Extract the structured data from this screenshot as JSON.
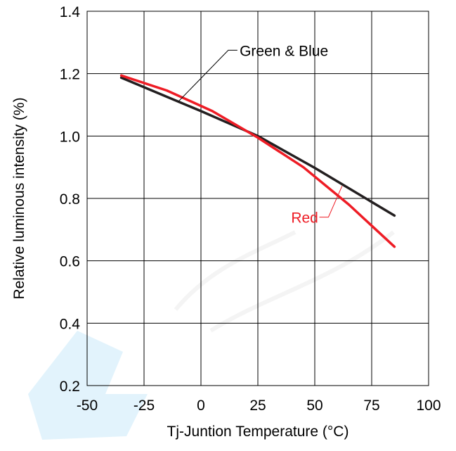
{
  "chart_data": {
    "type": "line",
    "xlabel": "Tj-Juntion Temperature (°C)",
    "ylabel": "Relative luminous intensity (%)",
    "xlim": [
      -50,
      100
    ],
    "ylim": [
      0.2,
      1.4
    ],
    "x_ticks": [
      -50,
      -25,
      0,
      25,
      50,
      75,
      100
    ],
    "y_ticks": [
      0.2,
      0.4,
      0.6,
      0.8,
      1.0,
      1.2,
      1.4
    ],
    "x_tick_labels": [
      "-50",
      "-25",
      "0",
      "25",
      "50",
      "75",
      "100"
    ],
    "y_tick_labels": [
      "0.2",
      "0.4",
      "0.6",
      "0.8",
      "1.0",
      "1.2",
      "1.4"
    ],
    "grid": true,
    "series": [
      {
        "name": "Green & Blue",
        "color": "#231f20",
        "x": [
          -35,
          0,
          25,
          50,
          85
        ],
        "y": [
          1.187,
          1.08,
          1.0,
          0.898,
          0.745
        ]
      },
      {
        "name": "Red",
        "color": "#ee1c25",
        "x": [
          -35,
          -15,
          5,
          25,
          45,
          65,
          85
        ],
        "y": [
          1.194,
          1.146,
          1.08,
          0.995,
          0.9,
          0.78,
          0.645
        ]
      }
    ],
    "annotations": [
      {
        "text": "Green & Blue",
        "color": "#000000",
        "series": "Green & Blue"
      },
      {
        "text": "Red",
        "color": "#ee1c25",
        "series": "Red"
      }
    ]
  }
}
